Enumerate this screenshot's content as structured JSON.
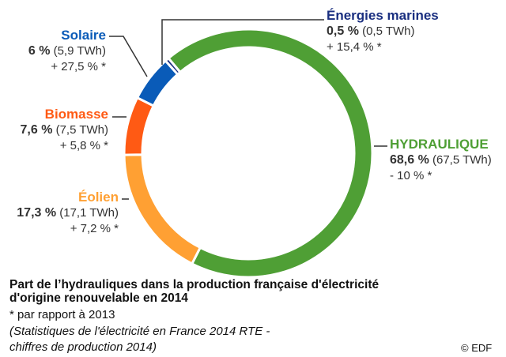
{
  "chart_data": {
    "type": "pie",
    "style": "donut",
    "title": "Part de l’hydrauliques  dans la production française d'électricité",
    "title_line2": "d'origine renouvelable en 2014",
    "note": "* par rapport à 2013",
    "source_line1": "(Statistiques de l'électricité en France 2014 RTE -",
    "source_line2": "chiffres de production 2014)",
    "credit": "© EDF",
    "slices": [
      {
        "name": "HYDRAULIQUE",
        "share": 68.6,
        "share_label": "68,6 %",
        "twh_label": "(67,5 TWh)",
        "change_label": "- 10 % *",
        "twh": 67.5,
        "change": -10,
        "color": "#4f9f35"
      },
      {
        "name": "Éolien",
        "share": 17.3,
        "share_label": "17,3 %",
        "twh_label": "(17,1 TWh)",
        "change_label": "+ 7,2 % *",
        "twh": 17.1,
        "change": 7.2,
        "color": "#ffa033"
      },
      {
        "name": "Biomasse",
        "share": 7.6,
        "share_label": "7,6 %",
        "twh_label": "(7,5 TWh)",
        "change_label": "+ 5,8 % *",
        "twh": 7.5,
        "change": 5.8,
        "color": "#ff5a14"
      },
      {
        "name": "Solaire",
        "share": 6,
        "share_label": "6 %",
        "twh_label": "(5,9 TWh)",
        "change_label": "+ 27,5 % *",
        "twh": 5.9,
        "change": 27.5,
        "color": "#0a5bb8"
      },
      {
        "name": "Énergies marines",
        "share": 0.5,
        "share_label": "0,5 %",
        "twh_label": "(0,5 TWh)",
        "change_label": "+ 15,4 % *",
        "twh": 0.5,
        "change": 15.4,
        "color": "#1a2f80"
      }
    ]
  }
}
